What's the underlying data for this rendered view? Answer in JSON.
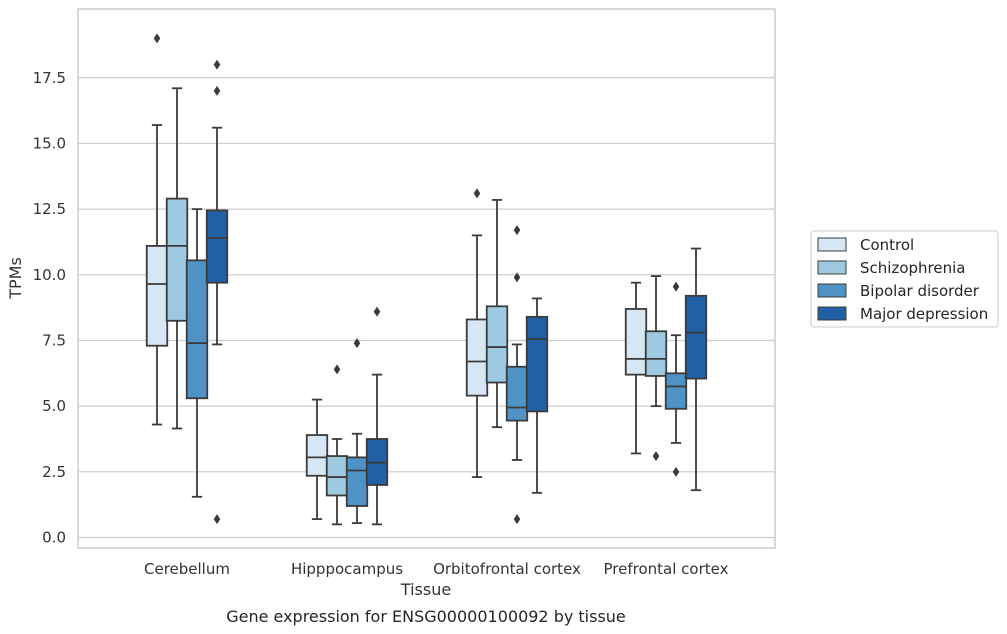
{
  "chart_data": {
    "type": "box",
    "title": "",
    "caption": "Gene expression for ENSG00000100092 by tissue",
    "xlabel": "Tissue",
    "ylabel": "TPMs",
    "ylim": [
      -0.4,
      20.0
    ],
    "yticks": [
      "0.0",
      "2.5",
      "5.0",
      "7.5",
      "10.0",
      "12.5",
      "15.0",
      "17.5"
    ],
    "yticks_values": [
      0,
      2.5,
      5,
      7.5,
      10,
      12.5,
      15,
      17.5
    ],
    "grid": true,
    "legend_placement": "right",
    "categories": [
      "Cerebellum",
      "Hipppocampus",
      "Orbitofrontal cortex",
      "Prefrontal cortex"
    ],
    "series": [
      {
        "name": "Control",
        "color": "#d6e6f4",
        "boxes": [
          {
            "whisker_low": 4.3,
            "q1": 7.3,
            "median": 9.65,
            "q3": 11.1,
            "whisker_high": 15.7,
            "outliers": [
              19.0
            ]
          },
          {
            "whisker_low": 0.7,
            "q1": 2.35,
            "median": 3.05,
            "q3": 3.9,
            "whisker_high": 5.25,
            "outliers": []
          },
          {
            "whisker_low": 2.3,
            "q1": 5.4,
            "median": 6.7,
            "q3": 8.3,
            "whisker_high": 11.5,
            "outliers": [
              13.1
            ]
          },
          {
            "whisker_low": 3.2,
            "q1": 6.2,
            "median": 6.8,
            "q3": 8.7,
            "whisker_high": 9.7,
            "outliers": []
          }
        ]
      },
      {
        "name": "Schizophrenia",
        "color": "#9ecae1",
        "boxes": [
          {
            "whisker_low": 4.15,
            "q1": 8.25,
            "median": 11.1,
            "q3": 12.9,
            "whisker_high": 17.1,
            "outliers": []
          },
          {
            "whisker_low": 0.5,
            "q1": 1.6,
            "median": 2.3,
            "q3": 3.1,
            "whisker_high": 3.75,
            "outliers": [
              6.4
            ]
          },
          {
            "whisker_low": 4.2,
            "q1": 5.9,
            "median": 7.25,
            "q3": 8.8,
            "whisker_high": 12.85,
            "outliers": []
          },
          {
            "whisker_low": 5.0,
            "q1": 6.15,
            "median": 6.8,
            "q3": 7.85,
            "whisker_high": 9.95,
            "outliers": [
              3.1
            ]
          }
        ]
      },
      {
        "name": "Bipolar disorder",
        "color": "#4f93c6",
        "boxes": [
          {
            "whisker_low": 1.55,
            "q1": 5.3,
            "median": 7.4,
            "q3": 10.55,
            "whisker_high": 12.5,
            "outliers": []
          },
          {
            "whisker_low": 0.55,
            "q1": 1.2,
            "median": 2.55,
            "q3": 3.05,
            "whisker_high": 3.95,
            "outliers": [
              7.4
            ]
          },
          {
            "whisker_low": 2.95,
            "q1": 4.45,
            "median": 4.95,
            "q3": 6.5,
            "whisker_high": 7.35,
            "outliers": [
              0.7,
              9.9,
              11.7
            ]
          },
          {
            "whisker_low": 3.6,
            "q1": 4.9,
            "median": 5.75,
            "q3": 6.25,
            "whisker_high": 7.7,
            "outliers": [
              2.5,
              9.55
            ]
          }
        ]
      },
      {
        "name": "Major depression",
        "color": "#2260a6",
        "boxes": [
          {
            "whisker_low": 7.35,
            "q1": 9.7,
            "median": 11.4,
            "q3": 12.45,
            "whisker_high": 15.6,
            "outliers": [
              0.7,
              17.0,
              18.0
            ]
          },
          {
            "whisker_low": 0.5,
            "q1": 2.0,
            "median": 2.85,
            "q3": 3.75,
            "whisker_high": 6.2,
            "outliers": [
              8.6
            ]
          },
          {
            "whisker_low": 1.7,
            "q1": 4.8,
            "median": 7.55,
            "q3": 8.4,
            "whisker_high": 9.1,
            "outliers": []
          },
          {
            "whisker_low": 1.8,
            "q1": 6.05,
            "median": 7.8,
            "q3": 9.2,
            "whisker_high": 11.0,
            "outliers": []
          }
        ]
      }
    ]
  }
}
